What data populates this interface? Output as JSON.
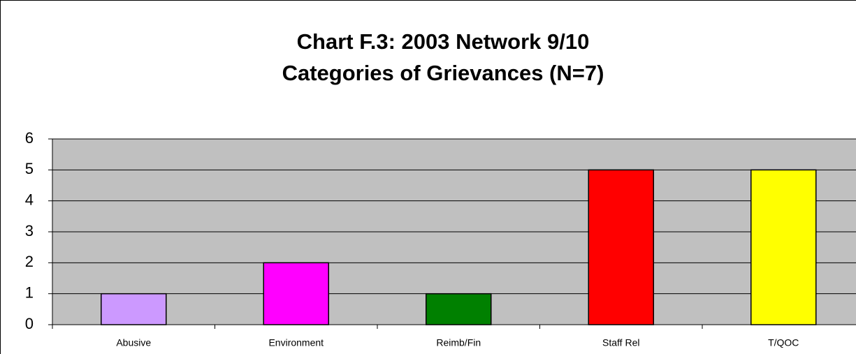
{
  "chart_data": {
    "type": "bar",
    "title": "Chart F.3: 2003 Network 9/10",
    "subtitle": "Categories of Grievances (N=7)",
    "categories": [
      "Abusive",
      "Environment",
      "Reimb/Fin",
      "Staff Rel",
      "T/QOC"
    ],
    "values": [
      1,
      2,
      1,
      5,
      5
    ],
    "colors": [
      "#cc99ff",
      "#ff00ff",
      "#008000",
      "#ff0000",
      "#ffff00"
    ],
    "ylim": [
      0,
      6
    ],
    "yticks": [
      0,
      1,
      2,
      3,
      4,
      5,
      6
    ],
    "grid": true
  }
}
